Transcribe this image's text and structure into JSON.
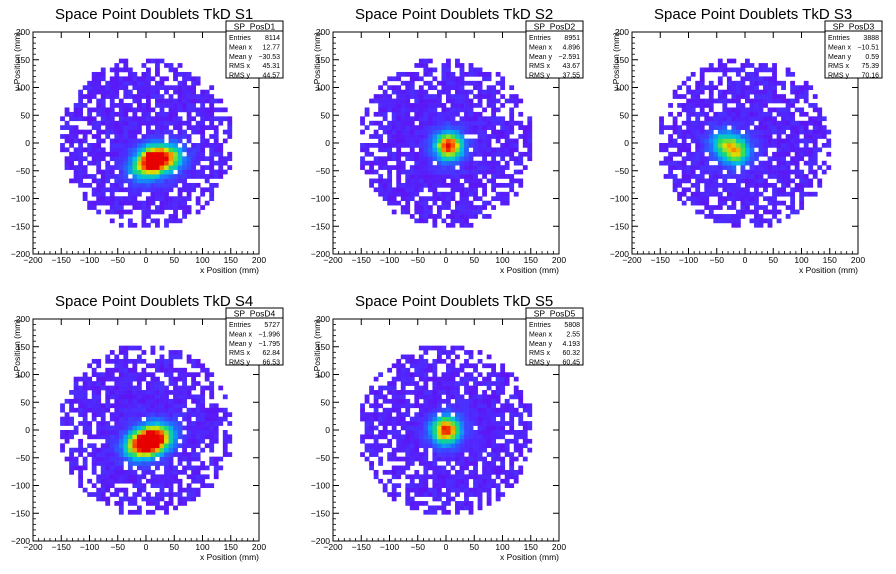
{
  "chart_data": [
    {
      "type": "heatmap",
      "title": "Space Point Doublets TkD S1",
      "xlabel": "x Position (mm)",
      "ylabel": "y Position (mm)",
      "xlim": [
        -200,
        200
      ],
      "ylim": [
        -200,
        200
      ],
      "xticks": [
        -200,
        -150,
        -100,
        -50,
        0,
        50,
        100,
        150,
        200
      ],
      "yticks": [
        -200,
        -150,
        -100,
        -50,
        0,
        50,
        100,
        150,
        200
      ],
      "stats": {
        "name": "SP_PosD1",
        "rows": [
          [
            "Entries",
            "8114"
          ],
          [
            "Mean x",
            "12.77"
          ],
          [
            "Mean y",
            "−30.53"
          ],
          [
            "RMS x",
            "45.31"
          ],
          [
            "RMS y",
            "44.57"
          ]
        ]
      },
      "hotspots": [
        {
          "x": 15,
          "y": -30,
          "w": 1.0
        },
        {
          "x": 45,
          "y": -25,
          "w": 0.5
        },
        {
          "x": -10,
          "y": -45,
          "w": 0.4
        }
      ]
    },
    {
      "type": "heatmap",
      "title": "Space Point Doublets TkD S2",
      "xlabel": "x Position (mm)",
      "ylabel": "y Position (mm)",
      "xlim": [
        -200,
        200
      ],
      "ylim": [
        -200,
        200
      ],
      "xticks": [
        -200,
        -150,
        -100,
        -50,
        0,
        50,
        100,
        150,
        200
      ],
      "yticks": [
        -200,
        -150,
        -100,
        -50,
        0,
        50,
        100,
        150,
        200
      ],
      "stats": {
        "name": "SP_PosD2",
        "rows": [
          [
            "Entries",
            "8951"
          ],
          [
            "Mean x",
            "4.896"
          ],
          [
            "Mean y",
            "−2.591"
          ],
          [
            "RMS x",
            "43.67"
          ],
          [
            "RMS y",
            "37.55"
          ]
        ]
      },
      "hotspots": [
        {
          "x": 5,
          "y": -5,
          "w": 0.9
        }
      ]
    },
    {
      "type": "heatmap",
      "title": "Space Point Doublets TkD S3",
      "xlabel": "x Position (mm)",
      "ylabel": "y Position (mm)",
      "xlim": [
        -200,
        200
      ],
      "ylim": [
        -200,
        200
      ],
      "xticks": [
        -200,
        -150,
        -100,
        -50,
        0,
        50,
        100,
        150,
        200
      ],
      "yticks": [
        -200,
        -150,
        -100,
        -50,
        0,
        50,
        100,
        150,
        200
      ],
      "stats": {
        "name": "SP_PosD3",
        "rows": [
          [
            "Entries",
            "3888"
          ],
          [
            "Mean x",
            "−10.51"
          ],
          [
            "Mean y",
            "0.59"
          ],
          [
            "RMS x",
            "75.39"
          ],
          [
            "RMS y",
            "70.16"
          ]
        ]
      },
      "hotspots": [
        {
          "x": -15,
          "y": -15,
          "w": 0.6
        },
        {
          "x": -40,
          "y": 0,
          "w": 0.4
        }
      ]
    },
    {
      "type": "heatmap",
      "title": "Space Point Doublets TkD S4",
      "xlabel": "x Position (mm)",
      "ylabel": "y Position (mm)",
      "xlim": [
        -200,
        200
      ],
      "ylim": [
        -200,
        200
      ],
      "xticks": [
        -200,
        -150,
        -100,
        -50,
        0,
        50,
        100,
        150,
        200
      ],
      "yticks": [
        -200,
        -150,
        -100,
        -50,
        0,
        50,
        100,
        150,
        200
      ],
      "stats": {
        "name": "SP_PosD4",
        "rows": [
          [
            "Entries",
            "5727"
          ],
          [
            "Mean x",
            "−1.996"
          ],
          [
            "Mean y",
            "−1.795"
          ],
          [
            "RMS x",
            "62.84"
          ],
          [
            "RMS y",
            "66.53"
          ]
        ]
      },
      "hotspots": [
        {
          "x": 5,
          "y": -20,
          "w": 1.0
        },
        {
          "x": 30,
          "y": -10,
          "w": 0.5
        },
        {
          "x": -20,
          "y": -30,
          "w": 0.5
        }
      ]
    },
    {
      "type": "heatmap",
      "title": "Space Point Doublets TkD S5",
      "xlabel": "x Position (mm)",
      "ylabel": "y Position (mm)",
      "xlim": [
        -200,
        200
      ],
      "ylim": [
        -200,
        200
      ],
      "xticks": [
        -200,
        -150,
        -100,
        -50,
        0,
        50,
        100,
        150,
        200
      ],
      "yticks": [
        -200,
        -150,
        -100,
        -50,
        0,
        50,
        100,
        150,
        200
      ],
      "stats": {
        "name": "SP_PosD5",
        "rows": [
          [
            "Entries",
            "5808"
          ],
          [
            "Mean x",
            "2.55"
          ],
          [
            "Mean y",
            "4.193"
          ],
          [
            "RMS x",
            "60.32"
          ],
          [
            "RMS y",
            "60.45"
          ]
        ]
      },
      "hotspots": [
        {
          "x": 0,
          "y": 0,
          "w": 0.9
        }
      ]
    }
  ]
}
